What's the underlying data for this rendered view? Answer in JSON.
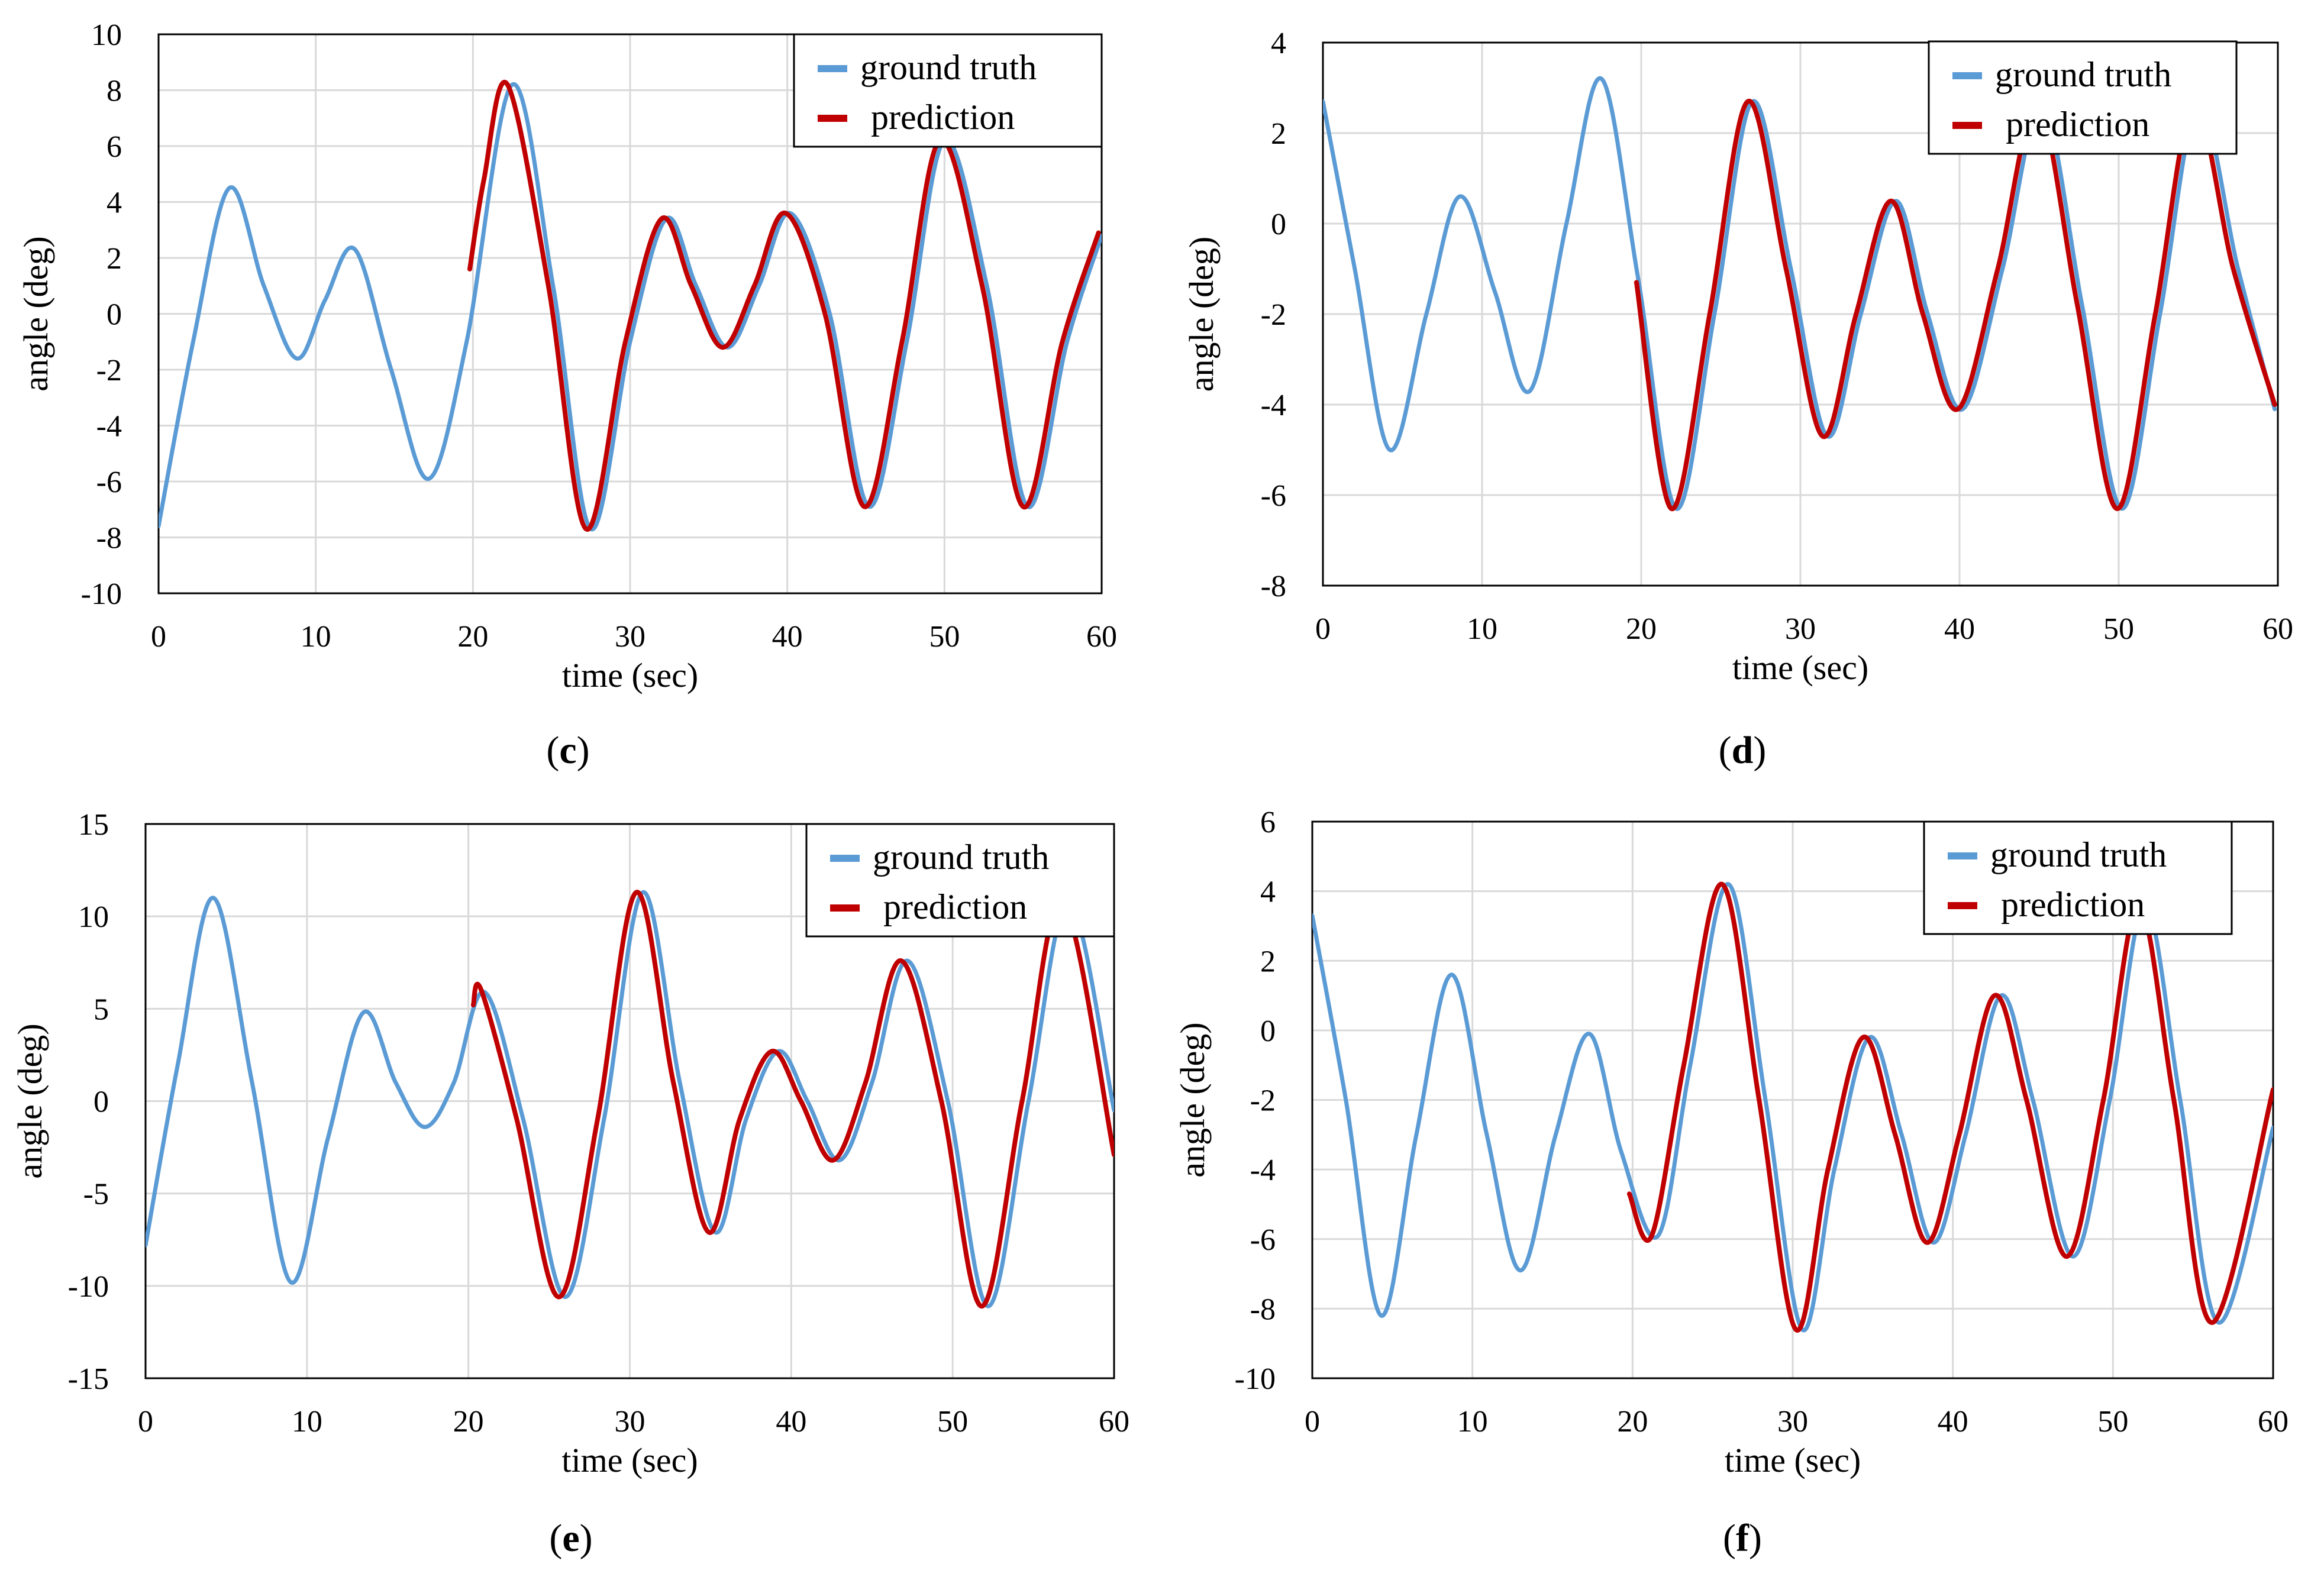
{
  "colors": {
    "ground_truth": "#5b9bd5",
    "prediction": "#c00000",
    "grid": "#d9d9d9",
    "axis": "#000000"
  },
  "chart_data": [
    {
      "panel": "c",
      "type": "line",
      "caption": "(c)",
      "caption_letter": "c",
      "xlabel": "time (sec)",
      "ylabel": "angle (deg)",
      "xlim": [
        0,
        60
      ],
      "ylim": [
        -10,
        10
      ],
      "xticks": [
        0,
        10,
        20,
        30,
        40,
        50,
        60
      ],
      "yticks": [
        -10,
        -8,
        -6,
        -4,
        -2,
        0,
        2,
        4,
        6,
        8,
        10
      ],
      "legend": {
        "position": "top-right",
        "entries": [
          "ground truth",
          "prediction"
        ]
      },
      "series": [
        {
          "name": "ground truth",
          "color": "#5b9bd5",
          "x": [
            0,
            2.2,
            4.5,
            6.7,
            8.8,
            10.6,
            12.5,
            14.8,
            17.2,
            19.6,
            22.5,
            25.1,
            27.5,
            30.0,
            32.3,
            34.2,
            36.2,
            38.2,
            40.2,
            42.7,
            45.2,
            47.6,
            50.0,
            52.7,
            55.3,
            57.8,
            60.0
          ],
          "y": [
            -7.6,
            -1.0,
            4.5,
            1.0,
            -1.6,
            0.5,
            2.3,
            -2.0,
            -5.9,
            -1.0,
            8.2,
            1.0,
            -7.7,
            -1.0,
            3.4,
            1.0,
            -1.2,
            1.0,
            3.6,
            0.0,
            -6.9,
            -1.0,
            6.2,
            1.0,
            -6.9,
            -1.0,
            2.8
          ]
        },
        {
          "name": "prediction",
          "color": "#c00000",
          "x": [
            19.8,
            20.7,
            22.2,
            24.8,
            27.2,
            29.7,
            32.0,
            33.9,
            35.9,
            37.9,
            39.9,
            42.4,
            44.9,
            47.3,
            49.7,
            52.4,
            55.0,
            57.5,
            59.8
          ],
          "y": [
            1.6,
            4.8,
            8.2,
            1.0,
            -7.7,
            -1.0,
            3.4,
            1.0,
            -1.2,
            1.0,
            3.6,
            0.0,
            -6.9,
            -1.0,
            6.2,
            1.0,
            -6.9,
            -1.0,
            2.9
          ]
        }
      ]
    },
    {
      "panel": "d",
      "type": "line",
      "caption": "(d)",
      "caption_letter": "d",
      "xlabel": "time (sec)",
      "ylabel": "angle (deg)",
      "xlim": [
        0,
        60
      ],
      "ylim": [
        -8,
        4
      ],
      "xticks": [
        0,
        10,
        20,
        30,
        40,
        50,
        60
      ],
      "yticks": [
        -8,
        -6,
        -4,
        -2,
        0,
        2,
        4
      ],
      "legend": {
        "position": "top-right",
        "entries": [
          "ground truth",
          "prediction"
        ]
      },
      "series": [
        {
          "name": "ground truth",
          "color": "#5b9bd5",
          "x": [
            0,
            2.0,
            4.2,
            6.5,
            8.6,
            10.8,
            13.0,
            15.3,
            17.5,
            19.8,
            22.2,
            24.6,
            27.0,
            29.4,
            31.7,
            33.8,
            36.0,
            38.0,
            40.2,
            42.7,
            45.2,
            47.7,
            50.2,
            52.6,
            55.0,
            57.5,
            59.8
          ],
          "y": [
            2.7,
            -1.0,
            -5.0,
            -2.0,
            0.6,
            -1.5,
            -3.7,
            0.0,
            3.2,
            -1.2,
            -6.3,
            -2.0,
            2.7,
            -1.0,
            -4.7,
            -2.0,
            0.5,
            -2.0,
            -4.1,
            -1.0,
            2.6,
            -1.8,
            -6.3,
            -2.0,
            2.6,
            -1.0,
            -4.1
          ]
        },
        {
          "name": "prediction",
          "color": "#c00000",
          "x": [
            19.7,
            21.9,
            24.3,
            26.7,
            29.1,
            31.4,
            33.5,
            35.7,
            37.7,
            39.9,
            42.4,
            44.9,
            47.4,
            49.9,
            52.3,
            54.7,
            57.2,
            59.8
          ],
          "y": [
            -1.3,
            -6.3,
            -2.0,
            2.7,
            -1.0,
            -4.7,
            -2.0,
            0.5,
            -2.0,
            -4.1,
            -1.0,
            2.6,
            -1.8,
            -6.3,
            -2.0,
            2.6,
            -1.0,
            -4.0
          ]
        }
      ]
    },
    {
      "panel": "e",
      "type": "line",
      "caption": "(e)",
      "caption_letter": "e",
      "xlabel": "time (sec)",
      "ylabel": "angle (deg)",
      "xlim": [
        0,
        60
      ],
      "ylim": [
        -15,
        15
      ],
      "xticks": [
        0,
        10,
        20,
        30,
        40,
        50,
        60
      ],
      "yticks": [
        -15,
        -10,
        -5,
        0,
        5,
        10,
        15
      ],
      "legend": {
        "position": "top-right",
        "entries": [
          "ground truth",
          "prediction"
        ]
      },
      "series": [
        {
          "name": "ground truth",
          "color": "#5b9bd5",
          "x": [
            0,
            2.0,
            4.2,
            6.6,
            9.0,
            11.3,
            13.5,
            15.5,
            17.3,
            19.1,
            21.0,
            23.4,
            26.0,
            28.4,
            30.8,
            33.1,
            35.3,
            37.2,
            39.2,
            41.0,
            43.0,
            45.0,
            47.2,
            49.7,
            52.2,
            54.7,
            57.2,
            60.0
          ],
          "y": [
            -7.8,
            2.0,
            11.0,
            1.0,
            -9.8,
            -2.0,
            4.8,
            1.0,
            -1.4,
            1.0,
            5.9,
            -1.0,
            -10.6,
            -1.0,
            11.3,
            1.0,
            -7.1,
            -1.0,
            2.7,
            0.0,
            -3.2,
            1.0,
            7.6,
            0.0,
            -11.1,
            0.0,
            10.8,
            -0.5
          ]
        },
        {
          "name": "prediction",
          "color": "#c00000",
          "x": [
            20.3,
            20.8,
            23.0,
            25.6,
            28.0,
            30.4,
            32.7,
            34.9,
            36.8,
            38.8,
            40.6,
            42.6,
            44.6,
            46.8,
            49.3,
            51.8,
            54.3,
            56.8,
            60.0
          ],
          "y": [
            5.2,
            6.0,
            -1.0,
            -10.6,
            -1.0,
            11.3,
            1.0,
            -7.1,
            -1.0,
            2.7,
            0.0,
            -3.2,
            1.0,
            7.6,
            0.0,
            -11.1,
            0.0,
            10.8,
            -2.9
          ]
        }
      ]
    },
    {
      "panel": "f",
      "type": "line",
      "caption": "(f)",
      "caption_letter": "f",
      "xlabel": "time (sec)",
      "ylabel": "angle (deg)",
      "xlim": [
        0,
        60
      ],
      "ylim": [
        -10,
        6
      ],
      "xticks": [
        0,
        10,
        20,
        30,
        40,
        50,
        60
      ],
      "yticks": [
        -10,
        -8,
        -6,
        -4,
        -2,
        0,
        2,
        4,
        6
      ],
      "legend": {
        "position": "top-right",
        "entries": [
          "ground truth",
          "prediction"
        ]
      },
      "series": [
        {
          "name": "ground truth",
          "color": "#5b9bd5",
          "x": [
            0,
            2.1,
            4.3,
            6.5,
            8.7,
            10.9,
            13.0,
            15.2,
            17.3,
            19.3,
            21.6,
            23.6,
            26.0,
            28.3,
            30.6,
            32.6,
            34.8,
            36.8,
            38.8,
            40.8,
            43.0,
            45.0,
            47.5,
            49.8,
            52.0,
            54.2,
            56.6,
            60.0
          ],
          "y": [
            3.3,
            -2.0,
            -8.2,
            -3.0,
            1.6,
            -3.0,
            -6.9,
            -3.0,
            -0.1,
            -3.5,
            -5.9,
            -1.0,
            4.2,
            -2.0,
            -8.6,
            -4.0,
            -0.2,
            -3.0,
            -6.1,
            -3.0,
            1.0,
            -2.0,
            -6.5,
            -2.0,
            3.6,
            -2.0,
            -8.4,
            -2.8
          ]
        },
        {
          "name": "prediction",
          "color": "#c00000",
          "x": [
            19.8,
            21.2,
            23.2,
            25.6,
            27.9,
            30.2,
            32.2,
            34.4,
            36.4,
            38.4,
            40.4,
            42.6,
            44.6,
            47.1,
            49.4,
            51.6,
            53.8,
            56.2,
            60.0
          ],
          "y": [
            -4.7,
            -5.9,
            -1.0,
            4.2,
            -2.0,
            -8.6,
            -4.0,
            -0.2,
            -3.0,
            -6.1,
            -3.0,
            1.0,
            -2.0,
            -6.5,
            -2.0,
            3.6,
            -2.0,
            -8.4,
            -1.7
          ]
        }
      ]
    }
  ]
}
